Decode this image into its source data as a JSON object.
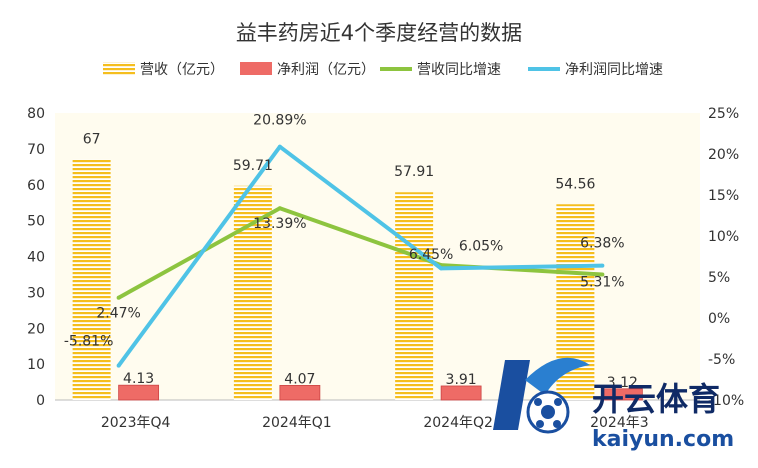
{
  "chart_data": {
    "type": "bar",
    "title": "益丰药房近4个季度经营的数据",
    "categories": [
      "2023年Q4",
      "2024年Q1",
      "2024年Q2",
      "2024年3"
    ],
    "series": [
      {
        "name": "营收（亿元）",
        "type": "bar",
        "axis": "left",
        "values": [
          67,
          59.71,
          57.91,
          54.56
        ],
        "labels": [
          "67",
          "59.71",
          "57.91",
          "54.56"
        ],
        "color": "#F5BE1E"
      },
      {
        "name": "净利润（亿元）",
        "type": "bar",
        "axis": "left",
        "values": [
          4.13,
          4.07,
          3.91,
          3.12
        ],
        "labels": [
          "4.13",
          "4.07",
          "3.91",
          "3.12"
        ],
        "color": "#EE6B66"
      },
      {
        "name": "营收同比增速",
        "type": "line",
        "axis": "right",
        "values": [
          2.47,
          13.39,
          6.45,
          5.31
        ],
        "labels": [
          "2.47%",
          "13.39%",
          "6.45%",
          "5.31%"
        ],
        "color": "#8DC43F"
      },
      {
        "name": "净利润同比增速",
        "type": "line",
        "axis": "right",
        "values": [
          -5.81,
          20.89,
          6.05,
          6.38
        ],
        "labels": [
          "-5.81%",
          "20.89%",
          "6.05%",
          "6.38%"
        ],
        "color": "#4FC3E6"
      }
    ],
    "y_left": {
      "min": 0,
      "max": 80,
      "ticks": [
        "0",
        "10",
        "20",
        "30",
        "40",
        "50",
        "60",
        "70",
        "80"
      ]
    },
    "y_right": {
      "min": -10,
      "max": 25,
      "ticks": [
        "-10%",
        "-5%",
        "0%",
        "5%",
        "10%",
        "15%",
        "20%",
        "25%"
      ]
    },
    "legend": "top",
    "grid": false,
    "plot_background": "#FFFCEF"
  },
  "watermark": {
    "brand": "开云体育",
    "url": "kaiyun.com"
  }
}
